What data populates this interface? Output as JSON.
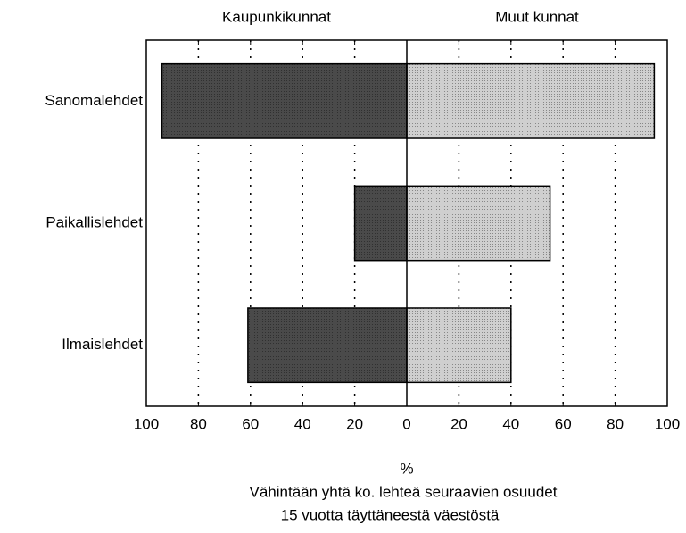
{
  "chart_data": {
    "type": "butterfly-bar",
    "categories": [
      "Sanomalehdet",
      "Paikallislehdet",
      "Ilmaislehdet"
    ],
    "series": [
      {
        "name": "Kaupunkikunnat",
        "side": "left",
        "color": "#4a4a4a",
        "values": [
          94,
          20,
          61
        ]
      },
      {
        "name": "Muut kunnat",
        "side": "right",
        "color": "#cfcfcf",
        "values": [
          95,
          55,
          40
        ]
      }
    ],
    "xlim": [
      -100,
      100
    ],
    "xticks": [
      {
        "value": -100,
        "label": "100"
      },
      {
        "value": -80,
        "label": "80"
      },
      {
        "value": -60,
        "label": "60"
      },
      {
        "value": -40,
        "label": "40"
      },
      {
        "value": -20,
        "label": "20"
      },
      0,
      20,
      40,
      60,
      80,
      100
    ],
    "xlabel": "%",
    "notes": [
      "Vähintään yhtä ko. lehteä seuraavien osuudet",
      "15 vuotta täyttäneestä väestöstä"
    ],
    "grid": true
  }
}
